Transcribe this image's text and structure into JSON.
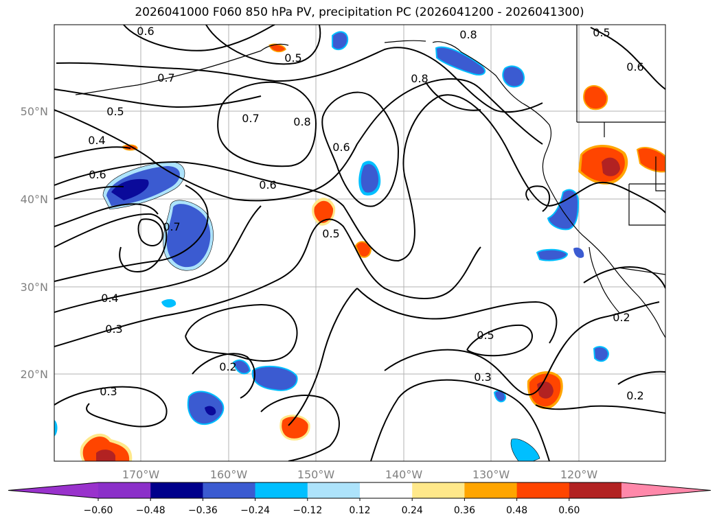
{
  "title": "2026041000 F060 850 hPa PV, precipitation PC (2026041200 - 2026041300)",
  "lat_labels": [
    "50°N",
    "40°N",
    "30°N",
    "20°N"
  ],
  "lon_labels": [
    "170°W",
    "160°W",
    "150°W",
    "140°W",
    "130°W",
    "120°W"
  ],
  "contour_labels": [
    "0.6",
    "0.8",
    "0.5",
    "0.5",
    "0.6",
    "0.7",
    "0.8",
    "0.7",
    "0.8",
    "0.5",
    "0.4",
    "0.6",
    "0.6",
    "0.6",
    "0.7",
    "0.5",
    "0.4",
    "0.3",
    "0.2",
    "0.5",
    "0.3",
    "0.3",
    "0.2",
    "0.2"
  ],
  "colorbar": {
    "tick_labels": [
      "−0.60",
      "−0.48",
      "−0.36",
      "−0.24",
      "−0.12",
      "0.12",
      "0.24",
      "0.36",
      "0.48",
      "0.60"
    ],
    "colors": [
      "#9932cc",
      "#8b2fc9",
      "#00008b",
      "#3b5bd1",
      "#00bfff",
      "#ade3fb",
      "#ffffff",
      "#ffe88a",
      "#ffa500",
      "#ff4500",
      "#b22222",
      "#ff88aa"
    ]
  },
  "fill_colors": {
    "neg_light": "#ade3fb",
    "neg_cyan": "#00bfff",
    "neg_blue": "#3b5bd1",
    "neg_dark": "#0a0a9a",
    "pos_yellow": "#ffe88a",
    "pos_orange": "#ffa500",
    "pos_red": "#ff4500",
    "pos_dark": "#b22222"
  }
}
